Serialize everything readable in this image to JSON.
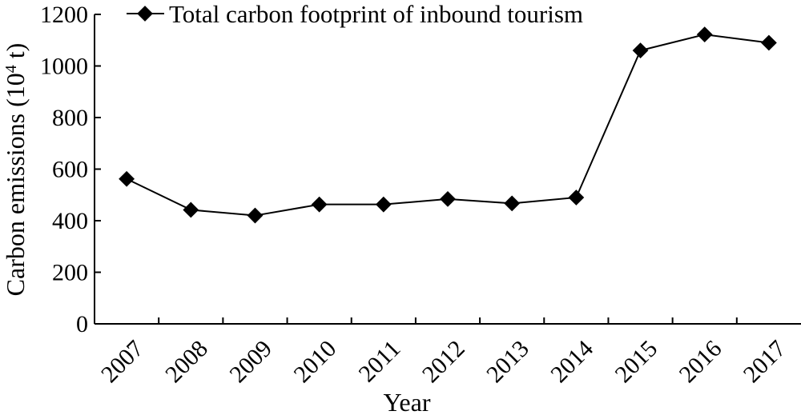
{
  "chart_data": {
    "type": "line",
    "categories": [
      "2007",
      "2008",
      "2009",
      "2010",
      "2011",
      "2012",
      "2013",
      "2014",
      "2015",
      "2016",
      "2017"
    ],
    "series": [
      {
        "name": "Total carbon footprint of inbound tourism",
        "values": [
          562,
          442,
          420,
          463,
          463,
          484,
          467,
          490,
          1060,
          1122,
          1090
        ],
        "marker": "diamond",
        "color": "#000000"
      }
    ],
    "ylabel_prefix": "Carbon emissions (10",
    "ylabel_sup": "4",
    "ylabel_suffix": " t)",
    "xlabel": "Year",
    "ylim": [
      0,
      1200
    ],
    "yticks": [
      "0",
      "200",
      "400",
      "600",
      "800",
      "1000",
      "1200"
    ],
    "grid": false,
    "legend_position": "top"
  }
}
